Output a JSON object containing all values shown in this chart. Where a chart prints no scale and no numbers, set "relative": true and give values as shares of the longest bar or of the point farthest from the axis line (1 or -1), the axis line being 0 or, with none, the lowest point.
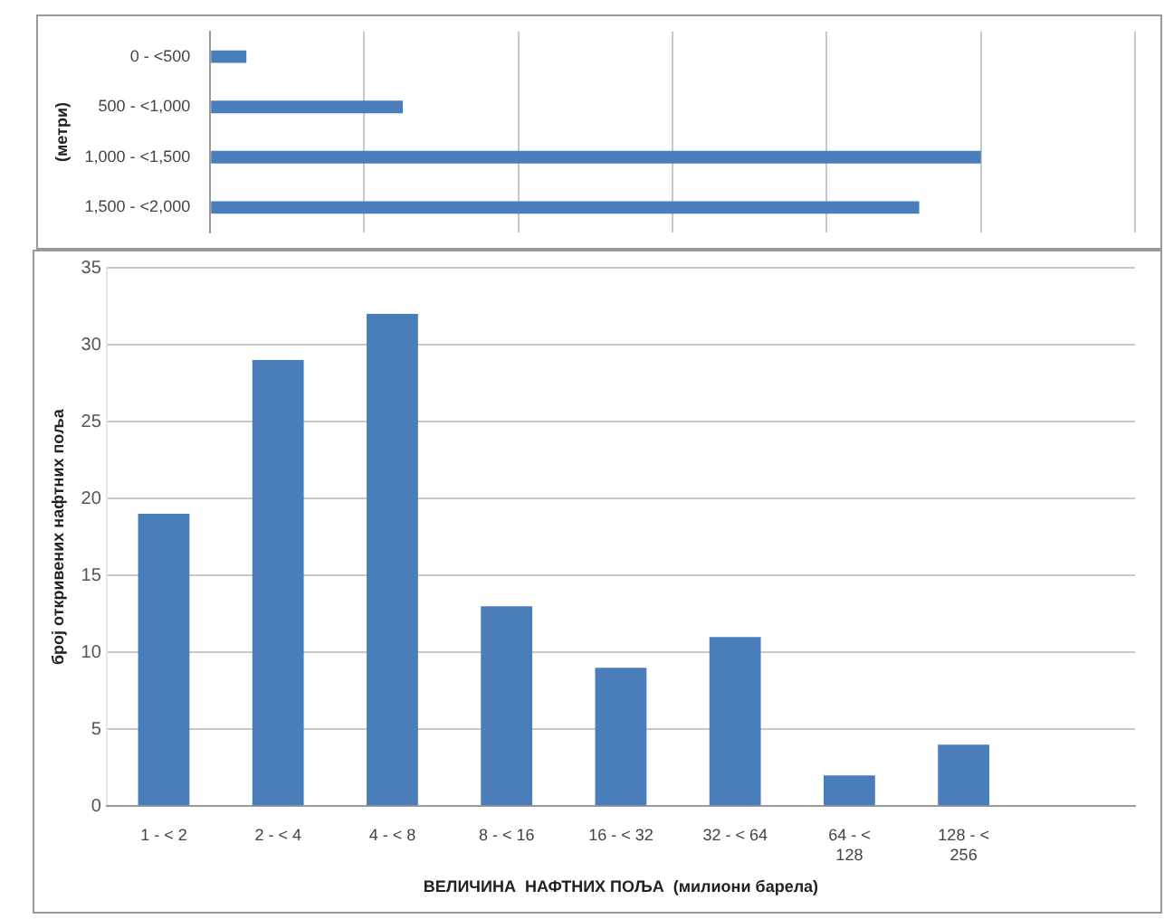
{
  "chart_data": [
    {
      "type": "bar",
      "orientation": "horizontal",
      "relative": true,
      "ylabel": "(метри)",
      "categories": [
        "0 - <500",
        "500 - <1,000",
        "1,000 - <1,500",
        "1,500 - <2,000"
      ],
      "values": [
        0.047,
        0.25,
        1,
        0.92
      ],
      "color": "#4a7ebb",
      "grid": "x",
      "tick_labels": "y",
      "legend": false
    },
    {
      "type": "bar",
      "ylabel": "број откривених нафтних поља",
      "xlabel": "ВЕЛИЧИНА  НАФТНИХ ПОЉА  (милиони барела)",
      "categories": [
        "1 - < 2",
        "2 - < 4",
        "4 - < 8",
        "8 - < 16",
        "16 - < 32",
        "32 - < 64",
        "64 - < 128",
        "128 - < 256",
        null
      ],
      "values": [
        19,
        29,
        32,
        13,
        9,
        11,
        2,
        4,
        null
      ],
      "color": "#4a7ebb",
      "ylim": [
        0,
        35
      ],
      "yticks": [
        0,
        5,
        10,
        15,
        20,
        25,
        30,
        35
      ],
      "grid": "y",
      "legend": false
    }
  ]
}
